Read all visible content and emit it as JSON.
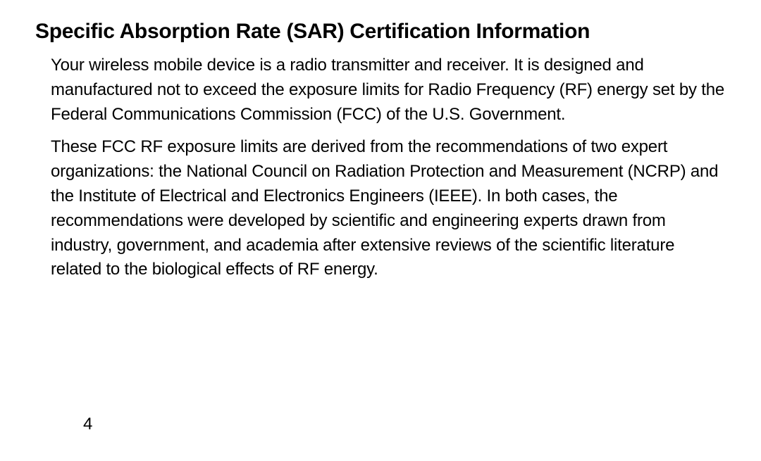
{
  "heading": "Specific Absorption Rate (SAR) Certification Information",
  "paragraphs": [
    "Your wireless mobile device is a radio transmitter and receiver. It is designed and manufactured not to exceed the exposure limits for Radio Frequency (RF) energy set by the Federal Communications Commission (FCC) of the U.S. Government.",
    "These FCC RF exposure limits are derived from the recommendations of two expert organizations: the National Council on Radiation Protection and Measurement (NCRP) and the Institute of Electrical and Electronics Engineers (IEEE). In both cases, the recommendations were developed by scientific and engineering experts drawn from industry, government, and academia after extensive reviews of the scientific literature related to the biological effects of RF energy."
  ],
  "page_number": "4",
  "colors": {
    "background": "#ffffff",
    "text": "#000000"
  },
  "typography": {
    "heading_fontsize": 30,
    "heading_weight": "bold",
    "body_fontsize": 24,
    "body_lineheight": 1.45
  }
}
